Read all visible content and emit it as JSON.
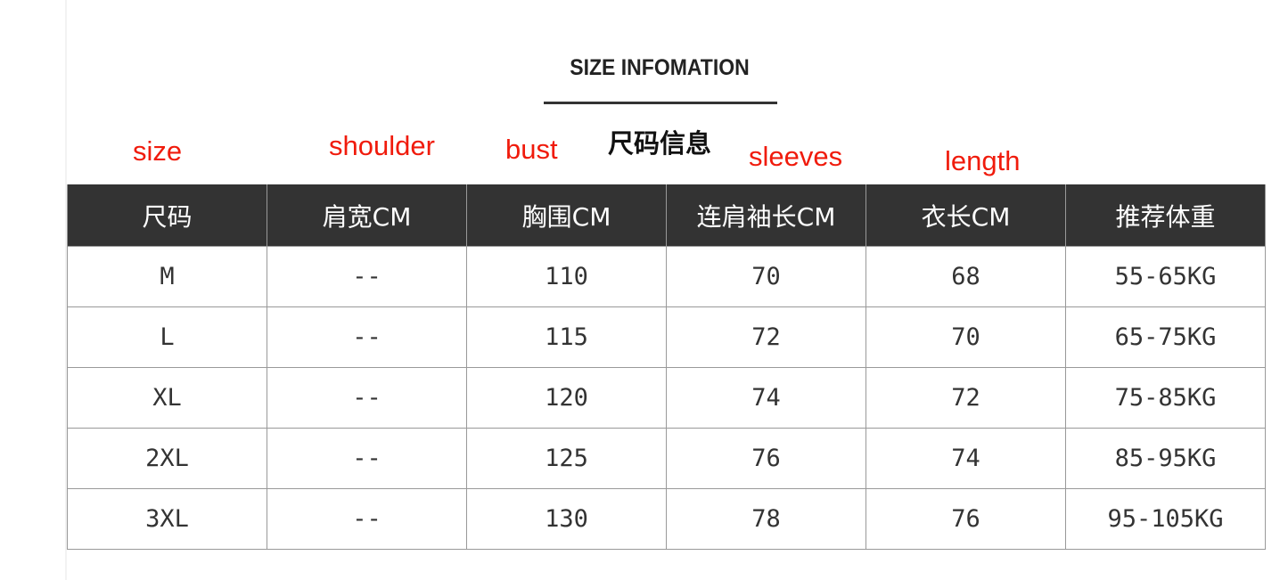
{
  "title": "SIZE INFOMATION",
  "subtitle": "尺码信息",
  "annotations": {
    "size": "size",
    "shoulder": "shoulder",
    "bust": "bust",
    "sleeves": "sleeves",
    "length": "length"
  },
  "annotation_color": "#f01b0c",
  "table": {
    "headers": [
      "尺码",
      "肩宽CM",
      "胸围CM",
      "连肩袖长CM",
      "衣长CM",
      "推荐体重"
    ],
    "rows": [
      [
        "M",
        "--",
        "110",
        "70",
        "68",
        "55-65KG"
      ],
      [
        "L",
        "--",
        "115",
        "72",
        "70",
        "65-75KG"
      ],
      [
        "XL",
        "--",
        "120",
        "74",
        "72",
        "75-85KG"
      ],
      [
        "2XL",
        "--",
        "125",
        "76",
        "74",
        "85-95KG"
      ],
      [
        "3XL",
        "--",
        "130",
        "78",
        "76",
        "95-105KG"
      ]
    ]
  }
}
